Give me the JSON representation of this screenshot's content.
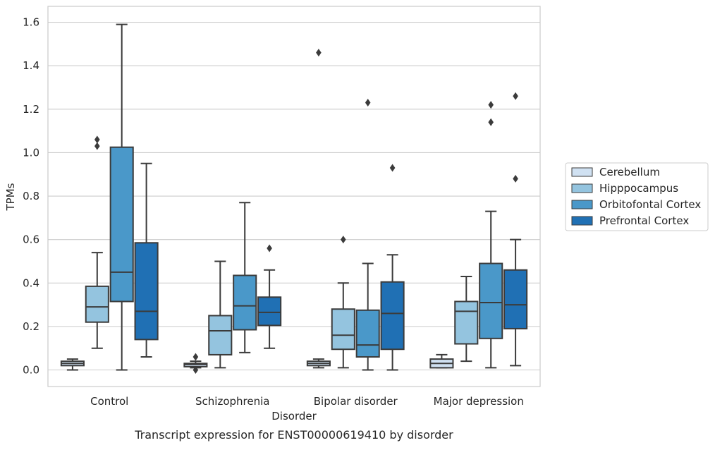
{
  "chart_data": {
    "type": "box",
    "title": "",
    "caption": "Transcript expression for ENST00000619410 by disorder",
    "xlabel": "Disorder",
    "ylabel": "TPMs",
    "ylim": [
      -0.08,
      1.67
    ],
    "yticks": [
      0.0,
      0.2,
      0.4,
      0.6,
      0.8,
      1.0,
      1.2,
      1.4,
      1.6
    ],
    "ytick_labels": [
      "0.0",
      "0.2",
      "0.4",
      "0.6",
      "0.8",
      "1.0",
      "1.2",
      "1.4",
      "1.6"
    ],
    "grid": "horizontal",
    "legend_position": "right",
    "categories": [
      "Control",
      "Schizophrenia",
      "Bipolar disorder",
      "Major depression"
    ],
    "series": [
      {
        "name": "Cerebellum",
        "color": "#d0e1f2",
        "boxes": [
          {
            "whislo": 0.0,
            "q1": 0.02,
            "med": 0.03,
            "q3": 0.04,
            "whishi": 0.05,
            "fliers": []
          },
          {
            "whislo": 0.01,
            "q1": 0.015,
            "med": 0.025,
            "q3": 0.03,
            "whishi": 0.04,
            "fliers": [
              0.06,
              0.0
            ]
          },
          {
            "whislo": 0.01,
            "q1": 0.02,
            "med": 0.03,
            "q3": 0.04,
            "whishi": 0.05,
            "fliers": [
              1.46
            ]
          },
          {
            "whislo": 0.01,
            "q1": 0.01,
            "med": 0.03,
            "q3": 0.05,
            "whishi": 0.07,
            "fliers": []
          }
        ]
      },
      {
        "name": "Hipppocampus",
        "color": "#94c4df",
        "boxes": [
          {
            "whislo": 0.1,
            "q1": 0.22,
            "med": 0.29,
            "q3": 0.385,
            "whishi": 0.54,
            "fliers": [
              1.03,
              1.06
            ]
          },
          {
            "whislo": 0.01,
            "q1": 0.07,
            "med": 0.18,
            "q3": 0.25,
            "whishi": 0.5,
            "fliers": []
          },
          {
            "whislo": 0.01,
            "q1": 0.095,
            "med": 0.16,
            "q3": 0.28,
            "whishi": 0.4,
            "fliers": [
              0.6
            ]
          },
          {
            "whislo": 0.04,
            "q1": 0.12,
            "med": 0.27,
            "q3": 0.315,
            "whishi": 0.43,
            "fliers": []
          }
        ]
      },
      {
        "name": "Orbitofontal Cortex",
        "color": "#4a98c9",
        "boxes": [
          {
            "whislo": 0.0,
            "q1": 0.315,
            "med": 0.45,
            "q3": 1.025,
            "whishi": 1.59,
            "fliers": []
          },
          {
            "whislo": 0.08,
            "q1": 0.185,
            "med": 0.295,
            "q3": 0.435,
            "whishi": 0.77,
            "fliers": []
          },
          {
            "whislo": 0.0,
            "q1": 0.06,
            "med": 0.115,
            "q3": 0.275,
            "whishi": 0.49,
            "fliers": [
              1.23
            ]
          },
          {
            "whislo": 0.01,
            "q1": 0.145,
            "med": 0.31,
            "q3": 0.49,
            "whishi": 0.73,
            "fliers": [
              1.14,
              1.22
            ]
          }
        ]
      },
      {
        "name": "Prefrontal Cortex",
        "color": "#2070b4",
        "boxes": [
          {
            "whislo": 0.06,
            "q1": 0.14,
            "med": 0.27,
            "q3": 0.585,
            "whishi": 0.95,
            "fliers": []
          },
          {
            "whislo": 0.1,
            "q1": 0.205,
            "med": 0.265,
            "q3": 0.335,
            "whishi": 0.46,
            "fliers": [
              0.56
            ]
          },
          {
            "whislo": 0.0,
            "q1": 0.095,
            "med": 0.26,
            "q3": 0.405,
            "whishi": 0.53,
            "fliers": [
              0.93
            ]
          },
          {
            "whislo": 0.02,
            "q1": 0.19,
            "med": 0.3,
            "q3": 0.46,
            "whishi": 0.6,
            "fliers": [
              0.88,
              1.26
            ]
          }
        ]
      }
    ]
  }
}
